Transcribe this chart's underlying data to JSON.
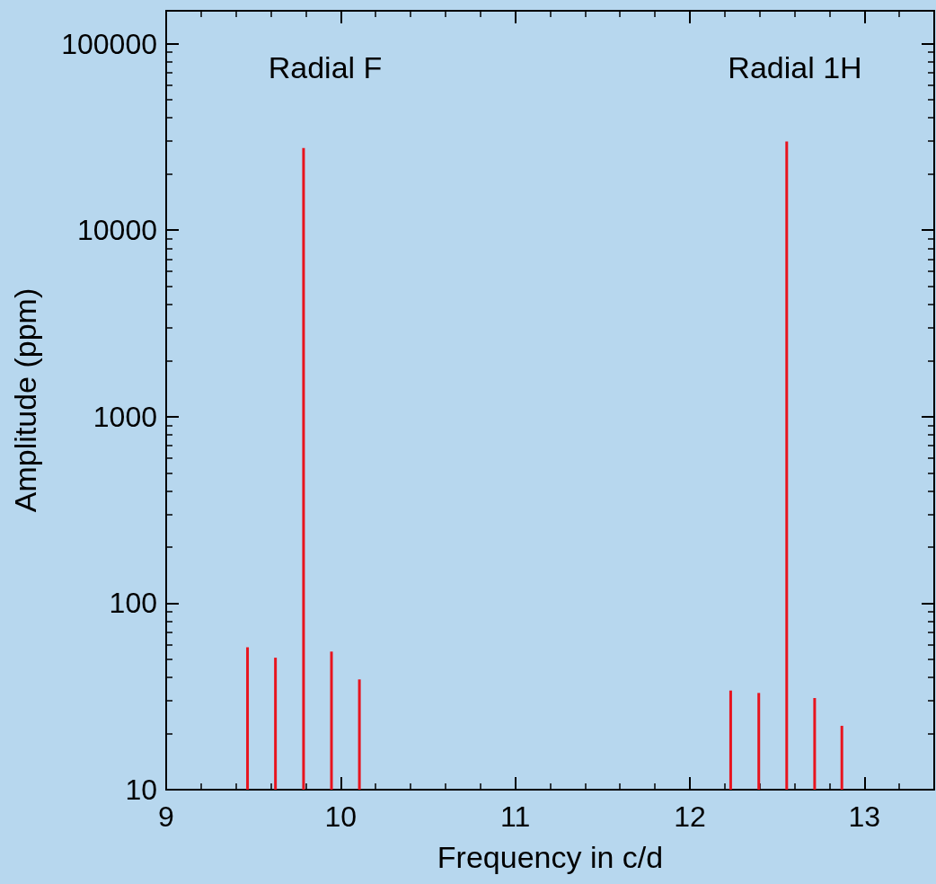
{
  "chart_data": {
    "type": "bar",
    "xlabel": "Frequency in c/d",
    "ylabel": "Amplitude (ppm)",
    "x": [
      9.466,
      9.626,
      9.787,
      9.947,
      10.107,
      12.234,
      12.395,
      12.555,
      12.715,
      12.871
    ],
    "values": [
      58,
      51,
      27600,
      55,
      39,
      34,
      33,
      29900,
      31,
      22
    ],
    "color": "#e8141e",
    "xlim": [
      9,
      13.4
    ],
    "xticks": [
      9,
      10,
      11,
      12,
      13
    ],
    "ylim": [
      10,
      150000
    ],
    "yticks": [
      10,
      100,
      1000,
      10000,
      100000
    ],
    "log": "y",
    "grid": false,
    "annotations": [
      "Radial F",
      "Radial 1H"
    ]
  }
}
